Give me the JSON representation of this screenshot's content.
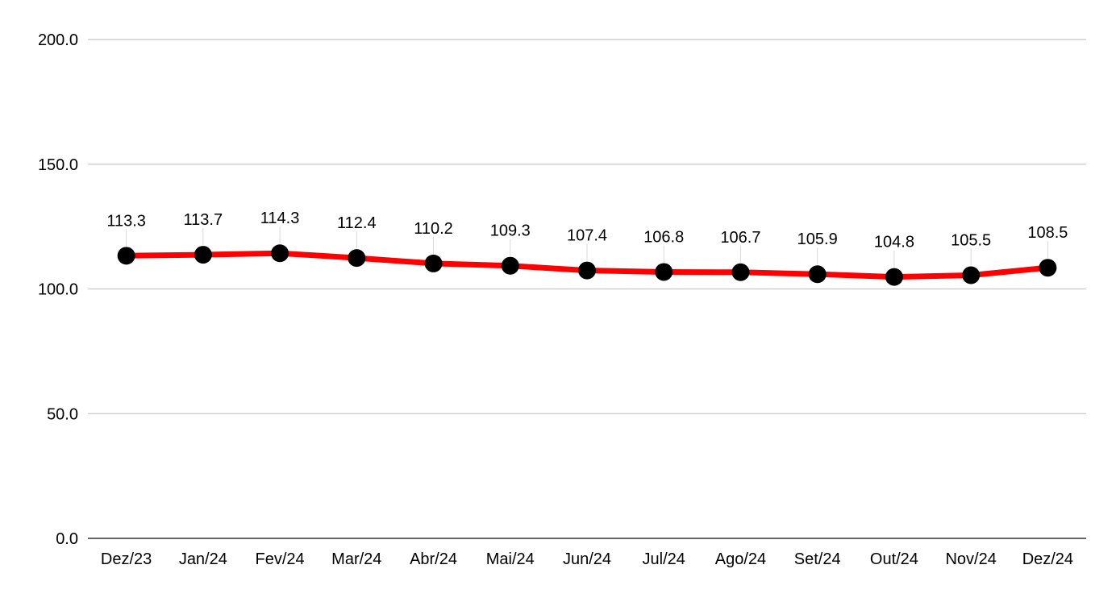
{
  "chart_data": {
    "type": "line",
    "categories": [
      "Dez/23",
      "Jan/24",
      "Fev/24",
      "Mar/24",
      "Abr/24",
      "Mai/24",
      "Jun/24",
      "Jul/24",
      "Ago/24",
      "Set/24",
      "Out/24",
      "Nov/24",
      "Dez/24"
    ],
    "series": [
      {
        "values": [
          113.3,
          113.7,
          114.3,
          112.4,
          110.2,
          109.3,
          107.4,
          106.8,
          106.7,
          105.9,
          104.8,
          105.5,
          108.5
        ],
        "labels": [
          "113.3",
          "113.7",
          "114.3",
          "112.4",
          "110.2",
          "109.3",
          "107.4",
          "106.8",
          "106.7",
          "105.9",
          "104.8",
          "105.5",
          "108.5"
        ],
        "line_color": "#ff0000",
        "marker_color": "#000000"
      }
    ],
    "y_ticks": [
      "0.0",
      "50.0",
      "100.0",
      "150.0",
      "200.0"
    ],
    "ylim": [
      0,
      200
    ],
    "title": "",
    "xlabel": "",
    "ylabel": "",
    "grid": true,
    "legend": "none"
  }
}
